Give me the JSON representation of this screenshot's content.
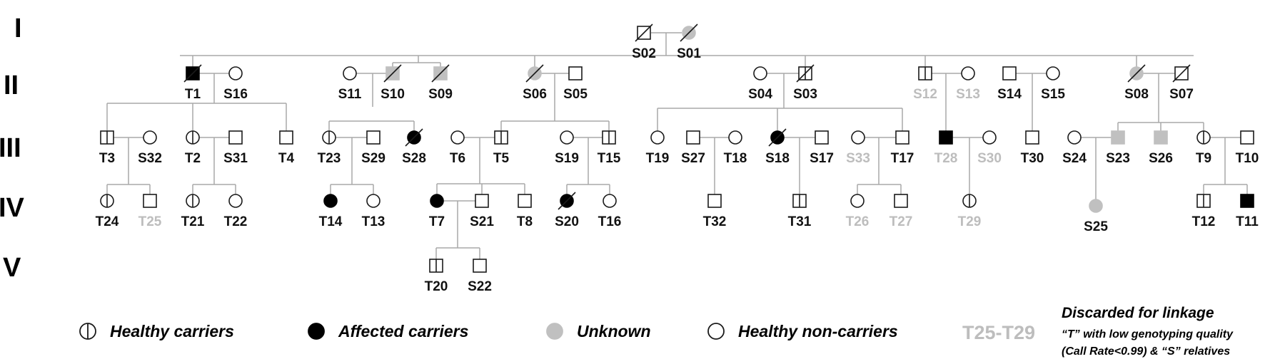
{
  "generations": [
    "I",
    "II",
    "III",
    "IV",
    "V"
  ],
  "colors": {
    "line": "#a9a9a9",
    "stroke": "#1a1a1a",
    "affected": "#000000",
    "unknown": "#c0c0c0",
    "text": "#111111",
    "discarded": "#bdbdbd"
  },
  "individuals": [
    {
      "id": "S02",
      "sex": "m",
      "status": "healthy",
      "deceased": true,
      "discarded": false
    },
    {
      "id": "S01",
      "sex": "f",
      "status": "unknown",
      "deceased": true,
      "discarded": false
    },
    {
      "id": "T1",
      "sex": "m",
      "status": "affected",
      "deceased": true,
      "discarded": false
    },
    {
      "id": "S16",
      "sex": "f",
      "status": "healthy",
      "deceased": false,
      "discarded": false
    },
    {
      "id": "S11",
      "sex": "f",
      "status": "healthy",
      "deceased": false,
      "discarded": false
    },
    {
      "id": "S10",
      "sex": "m",
      "status": "unknown",
      "deceased": true,
      "discarded": false
    },
    {
      "id": "S09",
      "sex": "m",
      "status": "unknown",
      "deceased": true,
      "discarded": false
    },
    {
      "id": "S06",
      "sex": "f",
      "status": "unknown",
      "deceased": true,
      "discarded": false
    },
    {
      "id": "S05",
      "sex": "m",
      "status": "healthy",
      "deceased": false,
      "discarded": false
    },
    {
      "id": "S04",
      "sex": "f",
      "status": "healthy",
      "deceased": false,
      "discarded": false
    },
    {
      "id": "S03",
      "sex": "m",
      "status": "carrier",
      "deceased": true,
      "discarded": false
    },
    {
      "id": "S12",
      "sex": "m",
      "status": "carrier",
      "deceased": false,
      "discarded": true
    },
    {
      "id": "S13",
      "sex": "f",
      "status": "healthy",
      "deceased": false,
      "discarded": true
    },
    {
      "id": "S14",
      "sex": "m",
      "status": "healthy",
      "deceased": false,
      "discarded": false
    },
    {
      "id": "S15",
      "sex": "f",
      "status": "healthy",
      "deceased": false,
      "discarded": false
    },
    {
      "id": "S08",
      "sex": "f",
      "status": "unknown",
      "deceased": true,
      "discarded": false
    },
    {
      "id": "S07",
      "sex": "m",
      "status": "healthy",
      "deceased": true,
      "discarded": false
    },
    {
      "id": "T3",
      "sex": "m",
      "status": "carrier",
      "deceased": false,
      "discarded": false
    },
    {
      "id": "S32",
      "sex": "f",
      "status": "healthy",
      "deceased": false,
      "discarded": false
    },
    {
      "id": "T2",
      "sex": "f",
      "status": "carrier",
      "deceased": false,
      "discarded": false
    },
    {
      "id": "S31",
      "sex": "m",
      "status": "healthy",
      "deceased": false,
      "discarded": false
    },
    {
      "id": "T4",
      "sex": "m",
      "status": "healthy",
      "deceased": false,
      "discarded": false
    },
    {
      "id": "T23",
      "sex": "f",
      "status": "carrier",
      "deceased": false,
      "discarded": false
    },
    {
      "id": "S29",
      "sex": "m",
      "status": "healthy",
      "deceased": false,
      "discarded": false
    },
    {
      "id": "S28",
      "sex": "f",
      "status": "affected",
      "deceased": true,
      "discarded": false
    },
    {
      "id": "T6",
      "sex": "f",
      "status": "healthy",
      "deceased": false,
      "discarded": false
    },
    {
      "id": "T5",
      "sex": "m",
      "status": "carrier",
      "deceased": false,
      "discarded": false
    },
    {
      "id": "S19",
      "sex": "f",
      "status": "healthy",
      "deceased": false,
      "discarded": false
    },
    {
      "id": "T15",
      "sex": "m",
      "status": "carrier",
      "deceased": false,
      "discarded": false
    },
    {
      "id": "T19",
      "sex": "f",
      "status": "healthy",
      "deceased": false,
      "discarded": false
    },
    {
      "id": "S27",
      "sex": "m",
      "status": "healthy",
      "deceased": false,
      "discarded": false
    },
    {
      "id": "T18",
      "sex": "f",
      "status": "healthy",
      "deceased": false,
      "discarded": false
    },
    {
      "id": "S18",
      "sex": "f",
      "status": "affected",
      "deceased": true,
      "discarded": false
    },
    {
      "id": "S17",
      "sex": "m",
      "status": "healthy",
      "deceased": false,
      "discarded": false
    },
    {
      "id": "S33",
      "sex": "f",
      "status": "healthy",
      "deceased": false,
      "discarded": true
    },
    {
      "id": "T17",
      "sex": "m",
      "status": "healthy",
      "deceased": false,
      "discarded": false
    },
    {
      "id": "T28",
      "sex": "m",
      "status": "affected",
      "deceased": false,
      "discarded": true
    },
    {
      "id": "S30",
      "sex": "f",
      "status": "healthy",
      "deceased": false,
      "discarded": true
    },
    {
      "id": "T30",
      "sex": "m",
      "status": "healthy",
      "deceased": false,
      "discarded": false
    },
    {
      "id": "S24",
      "sex": "f",
      "status": "healthy",
      "deceased": false,
      "discarded": false
    },
    {
      "id": "S23",
      "sex": "m",
      "status": "unknown",
      "deceased": false,
      "discarded": false
    },
    {
      "id": "S26",
      "sex": "m",
      "status": "unknown",
      "deceased": false,
      "discarded": false
    },
    {
      "id": "T9",
      "sex": "f",
      "status": "carrier",
      "deceased": false,
      "discarded": false
    },
    {
      "id": "T10",
      "sex": "m",
      "status": "healthy",
      "deceased": false,
      "discarded": false
    },
    {
      "id": "T24",
      "sex": "f",
      "status": "carrier",
      "deceased": false,
      "discarded": false
    },
    {
      "id": "T25",
      "sex": "m",
      "status": "healthy",
      "deceased": false,
      "discarded": true
    },
    {
      "id": "T21",
      "sex": "f",
      "status": "carrier",
      "deceased": false,
      "discarded": false
    },
    {
      "id": "T22",
      "sex": "f",
      "status": "healthy",
      "deceased": false,
      "discarded": false
    },
    {
      "id": "T14",
      "sex": "f",
      "status": "affected",
      "deceased": false,
      "discarded": false
    },
    {
      "id": "T13",
      "sex": "f",
      "status": "healthy",
      "deceased": false,
      "discarded": false
    },
    {
      "id": "T7",
      "sex": "f",
      "status": "affected",
      "deceased": false,
      "discarded": false
    },
    {
      "id": "S21",
      "sex": "m",
      "status": "healthy",
      "deceased": false,
      "discarded": false
    },
    {
      "id": "T8",
      "sex": "m",
      "status": "healthy",
      "deceased": false,
      "discarded": false
    },
    {
      "id": "S20",
      "sex": "f",
      "status": "affected",
      "deceased": true,
      "discarded": false
    },
    {
      "id": "T16",
      "sex": "f",
      "status": "healthy",
      "deceased": false,
      "discarded": false
    },
    {
      "id": "T32",
      "sex": "m",
      "status": "healthy",
      "deceased": false,
      "discarded": false
    },
    {
      "id": "T31",
      "sex": "m",
      "status": "carrier",
      "deceased": false,
      "discarded": false
    },
    {
      "id": "T26",
      "sex": "f",
      "status": "healthy",
      "deceased": false,
      "discarded": true
    },
    {
      "id": "T27",
      "sex": "m",
      "status": "healthy",
      "deceased": false,
      "discarded": true
    },
    {
      "id": "T29",
      "sex": "f",
      "status": "carrier",
      "deceased": false,
      "discarded": true
    },
    {
      "id": "S25",
      "sex": "f",
      "status": "unknown",
      "deceased": false,
      "discarded": false
    },
    {
      "id": "T12",
      "sex": "m",
      "status": "carrier",
      "deceased": false,
      "discarded": false
    },
    {
      "id": "T11",
      "sex": "m",
      "status": "affected",
      "deceased": false,
      "discarded": false
    },
    {
      "id": "T20",
      "sex": "m",
      "status": "carrier",
      "deceased": false,
      "discarded": false
    },
    {
      "id": "S22",
      "sex": "m",
      "status": "healthy",
      "deceased": false,
      "discarded": false
    }
  ],
  "legend": {
    "healthy_carriers": "Healthy carriers",
    "affected_carriers": "Affected carriers",
    "unknown": "Unknown",
    "healthy_non_carriers": "Healthy non-carriers",
    "discarded_range": "T25-T29",
    "discarded_title": "Discarded for linkage",
    "discarded_line1": "“T” with low genotyping quality",
    "discarded_line2": "(Call Rate<0.99) & “S” relatives"
  }
}
